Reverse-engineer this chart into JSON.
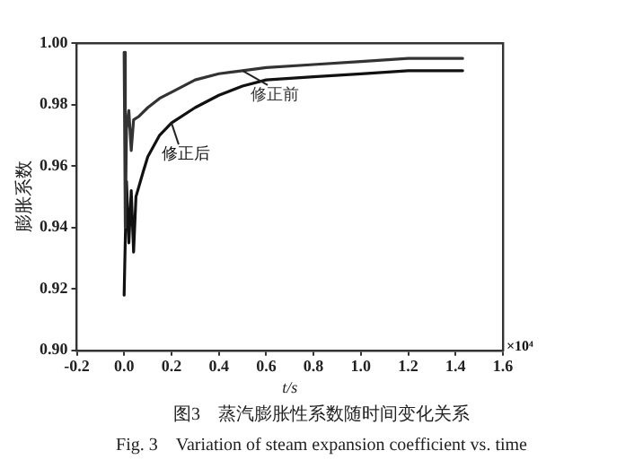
{
  "chart_data": {
    "type": "line",
    "xlabel": "t/s",
    "ylabel": "膨胀系数",
    "xlim": [
      -0.2,
      1.6
    ],
    "xticks": [
      {
        "value": -0.2,
        "label": "-0.2"
      },
      {
        "value": 0,
        "label": "0.0"
      },
      {
        "value": 0.2,
        "label": "0.2"
      },
      {
        "value": 0.4,
        "label": "0.4"
      },
      {
        "value": 0.6,
        "label": "0.6"
      },
      {
        "value": 0.8,
        "label": "0.8"
      },
      {
        "value": 1,
        "label": "1.0"
      },
      {
        "value": 1.2,
        "label": "1.2"
      },
      {
        "value": 1.4,
        "label": "1.4"
      },
      {
        "value": 1.6,
        "label": "1.6"
      }
    ],
    "ylim": [
      0.9,
      1.0
    ],
    "yticks": [
      {
        "value": 0.9,
        "label": "0.90"
      },
      {
        "value": 0.92,
        "label": "0.92"
      },
      {
        "value": 0.94,
        "label": "0.94"
      },
      {
        "value": 0.96,
        "label": "0.96"
      },
      {
        "value": 0.98,
        "label": "0.98"
      },
      {
        "value": 1.0,
        "label": "1.00"
      }
    ],
    "grid": false,
    "legend": false,
    "marker": "none",
    "line_style": "solid",
    "series": [
      {
        "name": "修正前",
        "color": "#333333",
        "x": [
          0,
          0.005,
          0.01,
          0.02,
          0.03,
          0.04,
          0.06,
          0.1,
          0.15,
          0.2,
          0.3,
          0.4,
          0.5,
          0.6,
          0.8,
          1.0,
          1.2,
          1.43
        ],
        "values": [
          0.997,
          0.94,
          0.972,
          0.978,
          0.965,
          0.975,
          0.976,
          0.979,
          0.982,
          0.984,
          0.988,
          0.99,
          0.991,
          0.992,
          0.993,
          0.994,
          0.995,
          0.995
        ]
      },
      {
        "name": "修正后",
        "color": "#111111",
        "x": [
          0,
          0.01,
          0.02,
          0.03,
          0.04,
          0.05,
          0.08,
          0.1,
          0.15,
          0.2,
          0.3,
          0.4,
          0.5,
          0.6,
          0.8,
          1.0,
          1.2,
          1.43
        ],
        "values": [
          0.918,
          0.955,
          0.935,
          0.952,
          0.932,
          0.95,
          0.958,
          0.963,
          0.97,
          0.974,
          0.979,
          0.983,
          0.986,
          0.988,
          0.989,
          0.99,
          0.991,
          0.991
        ]
      }
    ],
    "annotations": [
      "×10⁴",
      "图3　蒸汽膨胀性系数随时间变化关系",
      "Fig. 3　Variation of steam expansion coefficient vs.  time"
    ]
  }
}
